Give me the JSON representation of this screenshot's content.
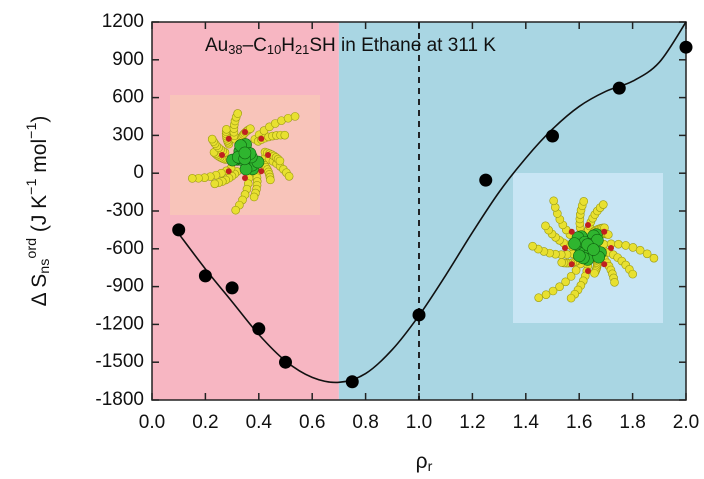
{
  "chart_data": {
    "type": "scatter",
    "title_parts": [
      {
        "text": "Au"
      },
      {
        "text": "38",
        "sub": true
      },
      {
        "text": "–C"
      },
      {
        "text": "10",
        "sub": true
      },
      {
        "text": "H"
      },
      {
        "text": "21",
        "sub": true
      },
      {
        "text": "SH in  Ethane at 311 K"
      }
    ],
    "y_label_parts": [
      {
        "text": "Δ S"
      },
      {
        "text": "ns",
        "sub": true
      },
      {
        "text": "ord",
        "sup": true
      },
      {
        "text": " (J K"
      },
      {
        "text": "−1",
        "sup": true
      },
      {
        "text": " mol"
      },
      {
        "text": "−1",
        "sup": true
      },
      {
        "text": ")"
      }
    ],
    "x_label_parts": [
      {
        "text": "ρ"
      },
      {
        "text": "r",
        "sub": true
      }
    ],
    "x": [
      0.1,
      0.2,
      0.3,
      0.4,
      0.5,
      0.75,
      1.0,
      1.25,
      1.5,
      1.75,
      2.0
    ],
    "values": [
      -450,
      -815,
      -910,
      -1235,
      -1500,
      -1655,
      -1125,
      -55,
      295,
      675,
      1000
    ],
    "color": "#000000",
    "fit_x": [
      0.1,
      0.2,
      0.3,
      0.4,
      0.5,
      0.6,
      0.7,
      0.8,
      0.9,
      1.0,
      1.1,
      1.2,
      1.3,
      1.4,
      1.5,
      1.6,
      1.7,
      1.8,
      1.9,
      2.0
    ],
    "fit_y": [
      -480,
      -760,
      -1020,
      -1280,
      -1490,
      -1620,
      -1660,
      -1590,
      -1400,
      -1130,
      -810,
      -470,
      -150,
      120,
      350,
      530,
      650,
      730,
      880,
      1200
    ],
    "regions": [
      {
        "from": 0.0,
        "to": 0.7,
        "color": "#f7b6c2"
      },
      {
        "from": 0.7,
        "to": 2.0,
        "color": "#a9d6e3"
      }
    ],
    "vline": 1.0,
    "xlim": [
      0.0,
      2.0
    ],
    "ylim": [
      -1800,
      1200
    ],
    "xticks": [
      {
        "value": 0.0,
        "label": "0.0"
      },
      {
        "value": 0.2,
        "label": "0.2"
      },
      {
        "value": 0.4,
        "label": "0.4"
      },
      {
        "value": 0.6,
        "label": "0.6"
      },
      {
        "value": 0.8,
        "label": "0.8"
      },
      {
        "value": 1.0,
        "label": "1.0"
      },
      {
        "value": 1.2,
        "label": "1.2"
      },
      {
        "value": 1.4,
        "label": "1.4"
      },
      {
        "value": 1.6,
        "label": "1.6"
      },
      {
        "value": 1.8,
        "label": "1.8"
      },
      {
        "value": 2.0,
        "label": "2.0"
      }
    ],
    "yticks": [
      1200,
      900,
      600,
      300,
      0,
      -300,
      -600,
      -900,
      -1200,
      -1500,
      -1800
    ]
  }
}
